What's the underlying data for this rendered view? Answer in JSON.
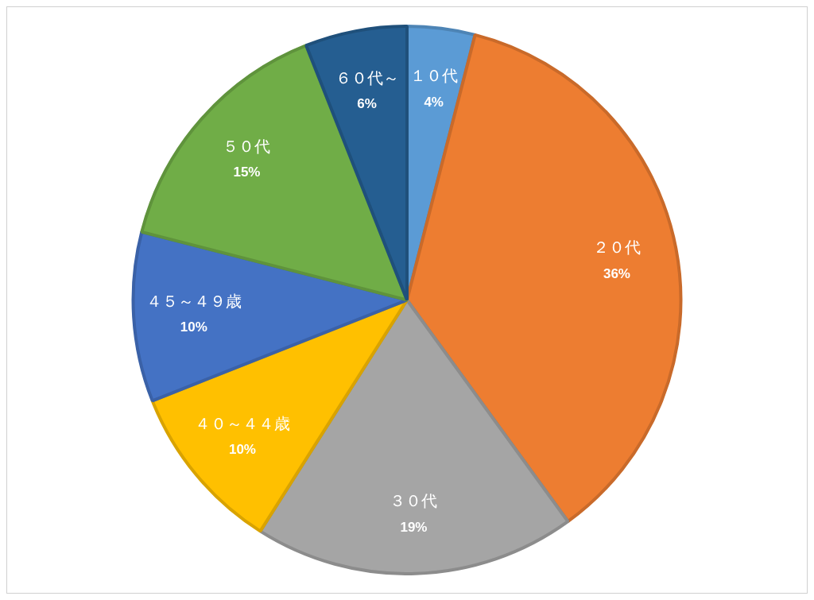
{
  "chart_data": {
    "type": "pie",
    "categories": [
      "１０代",
      "２０代",
      "３０代",
      "４０～４４歳",
      "４５～４９歳",
      "５０代",
      "６０代～"
    ],
    "values": [
      4,
      36,
      19,
      10,
      10,
      15,
      6
    ],
    "colors": [
      "#5b9bd5",
      "#ed7d31",
      "#a5a5a5",
      "#ffc000",
      "#4472c4",
      "#70ad47",
      "#255e91"
    ],
    "value_labels": [
      "4%",
      "36%",
      "19%",
      "10%",
      "10%",
      "15%",
      "6%"
    ],
    "legend": false
  }
}
